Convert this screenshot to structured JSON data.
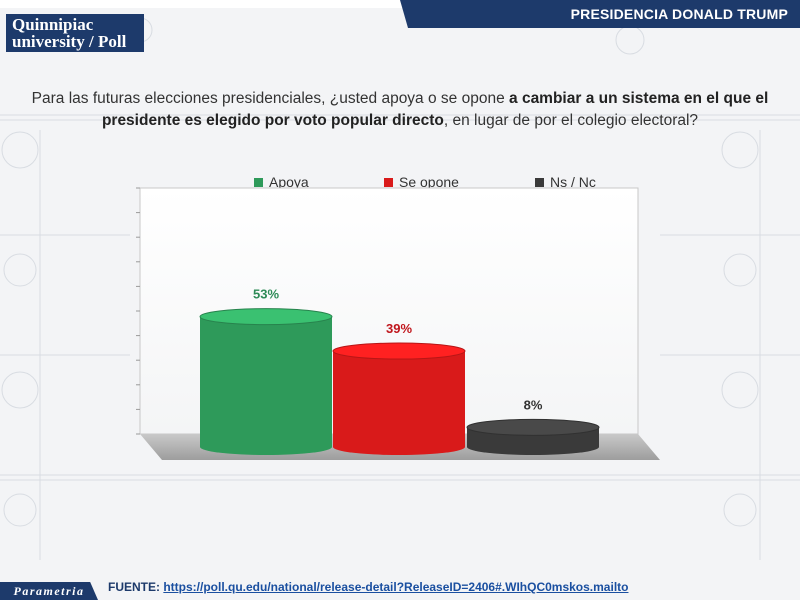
{
  "header": {
    "title": "PRESIDENCIA DONALD TRUMP"
  },
  "logo": {
    "line1": "Quinnipiac",
    "line2": "university",
    "line3": "Poll"
  },
  "question": {
    "part1": "Para las futuras elecciones presidenciales, ¿usted apoya o se opone ",
    "bold": "a cambiar a un sistema en el que el presidente es elegido por voto popular directo",
    "part2": ", en lugar de por el colegio electoral?"
  },
  "chart_data": {
    "type": "bar",
    "categories": [
      "Apoya",
      "Se opone",
      "Ns / Nc"
    ],
    "values": [
      53,
      39,
      8
    ],
    "value_labels": [
      "53%",
      "39%",
      "8%"
    ],
    "colors": [
      "#2e9a5a",
      "#d91a1a",
      "#3a3a3a"
    ],
    "label_colors": [
      "#2e8b57",
      "#c0161c",
      "#333333"
    ],
    "legend": [
      "Apoya",
      "Se opone",
      "Ns / Nc"
    ],
    "legend_position": "top",
    "ylim": [
      0,
      100
    ],
    "grid": false
  },
  "footer": {
    "brand": "Parametria",
    "source_label": "FUENTE: ",
    "source_url": "https://poll.qu.edu/national/release-detail?ReleaseID=2406#.WIhQC0mskos.mailto"
  }
}
